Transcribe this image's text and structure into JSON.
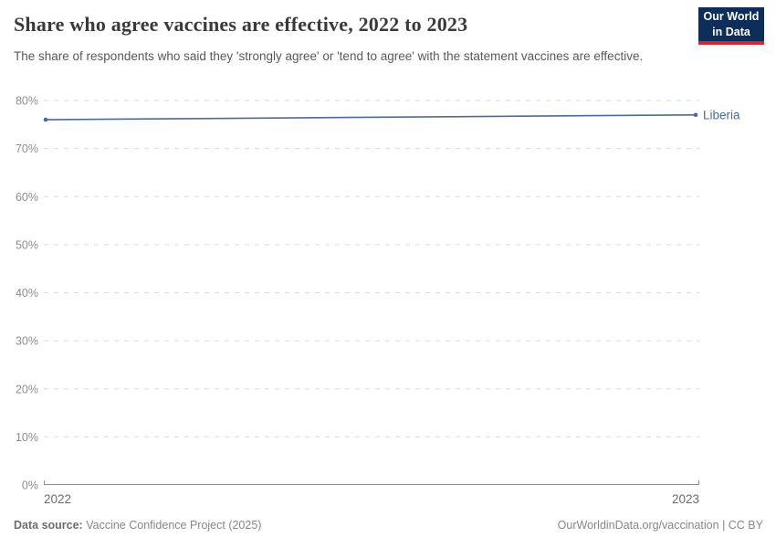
{
  "header": {
    "title": "Share who agree vaccines are effective, 2022 to 2023",
    "subtitle": "The share of respondents who said they 'strongly agree' or 'tend to agree' with the statement vaccines are effective."
  },
  "logo": {
    "line1": "Our World",
    "line2": "in Data",
    "bg": "#0d2e5b",
    "accent": "#cc2a31"
  },
  "chart_data": {
    "type": "line",
    "title": "Share who agree vaccines are effective, 2022 to 2023",
    "xlabel": "",
    "ylabel": "",
    "x": [
      2022,
      2023
    ],
    "xtick_labels": [
      "2022",
      "2023"
    ],
    "series": [
      {
        "name": "Liberia",
        "values": [
          76,
          77
        ],
        "color": "#4c6a9c"
      }
    ],
    "ylim": [
      0,
      80
    ],
    "ytick_step": 10,
    "ytick_suffix": "%",
    "grid": "horizontal-dashed",
    "legend": "inline-end-label"
  },
  "footer": {
    "source_label": "Data source:",
    "source_value": "Vaccine Confidence Project (2025)",
    "credit": "OurWorldinData.org/vaccination | CC BY"
  }
}
